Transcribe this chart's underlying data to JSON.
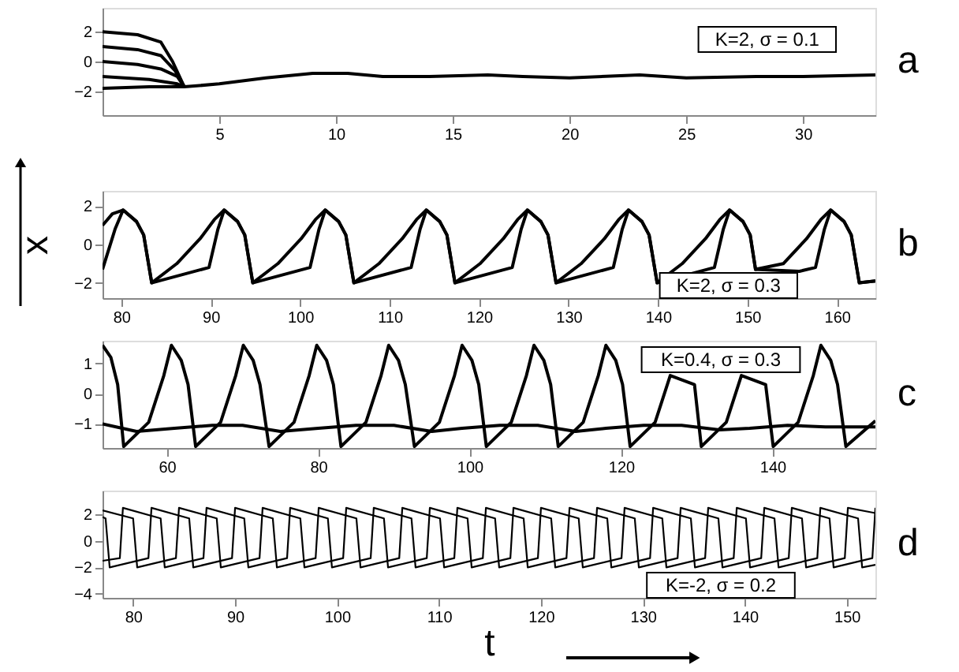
{
  "chart_data": [
    {
      "type": "line",
      "xlim": [
        0,
        33.1
      ],
      "xticks": [
        5,
        10,
        15,
        20,
        25,
        30
      ],
      "ylim": [
        -3.6,
        3.6
      ],
      "yticks": [
        -2,
        0,
        2
      ],
      "legend": false,
      "annotations": [
        "K=2, σ = 0.1",
        "a"
      ],
      "series": [
        {
          "color": "#000000",
          "x": [
            0,
            1.5,
            2.5,
            3.0,
            3.5,
            5,
            7,
            9,
            10.5,
            12,
            14,
            16.5,
            18,
            20,
            23,
            25,
            28,
            30,
            33.1
          ],
          "values": [
            2.0,
            1.8,
            1.3,
            0.0,
            -1.7,
            -1.5,
            -1.1,
            -0.8,
            -0.8,
            -1.0,
            -1.0,
            -0.9,
            -1.0,
            -1.1,
            -0.9,
            -1.1,
            -1.0,
            -1.0,
            -0.9
          ]
        },
        {
          "color": "#000000",
          "x": [
            0,
            1.5,
            2.5,
            3.1,
            3.5
          ],
          "values": [
            1.0,
            0.8,
            0.4,
            -0.6,
            -1.7
          ]
        },
        {
          "color": "#000000",
          "x": [
            0,
            1.5,
            2.5,
            3.2,
            3.5
          ],
          "values": [
            0.0,
            -0.2,
            -0.5,
            -1.0,
            -1.7
          ]
        },
        {
          "color": "#000000",
          "x": [
            0,
            2.0,
            3.2,
            3.5
          ],
          "values": [
            -1.0,
            -1.2,
            -1.5,
            -1.7
          ]
        },
        {
          "color": "#000000",
          "x": [
            0,
            2.0,
            3.2,
            3.5
          ],
          "values": [
            -1.8,
            -1.7,
            -1.7,
            -1.7
          ]
        }
      ]
    },
    {
      "type": "line",
      "xlim": [
        77.9,
        164.3
      ],
      "xticks": [
        80,
        90,
        100,
        110,
        120,
        130,
        140,
        150,
        160
      ],
      "ylim": [
        -2.8,
        2.8
      ],
      "yticks": [
        -2,
        0,
        2
      ],
      "legend": false,
      "ylabel": "x",
      "annotations": [
        "K=2, σ = 0.3",
        "b"
      ],
      "series": [
        {
          "color": "#000000",
          "x": [
            77.9,
            79.3,
            80.2,
            81.7,
            82.5,
            83.4,
            89.8,
            90.8,
            91.5,
            93.0,
            93.8,
            94.7,
            101.1,
            102.1,
            102.8,
            104.3,
            105.1,
            106.0,
            112.4,
            113.4,
            114.1,
            115.6,
            116.4,
            117.3,
            123.7,
            124.7,
            125.4,
            126.9,
            127.7,
            128.6,
            135.0,
            136.0,
            136.7,
            138.2,
            139.0,
            139.9,
            146.3,
            147.3,
            148.0,
            149.5,
            150.3,
            150.9,
            151.2,
            155.8,
            157.6,
            158.6,
            159.3,
            160.8,
            161.6,
            162.5,
            164.3
          ],
          "values": [
            -1.3,
            0.8,
            1.8,
            1.2,
            0.5,
            -2.0,
            -1.2,
            0.8,
            1.8,
            1.2,
            0.5,
            -2.0,
            -1.2,
            0.8,
            1.8,
            1.2,
            0.5,
            -2.0,
            -1.2,
            0.8,
            1.8,
            1.2,
            0.5,
            -2.0,
            -1.2,
            0.8,
            1.8,
            1.2,
            0.5,
            -2.0,
            -1.2,
            0.8,
            1.8,
            1.2,
            0.5,
            -2.0,
            -1.2,
            0.8,
            1.8,
            1.2,
            0.5,
            -1.3,
            null,
            -1.4,
            -1.2,
            0.8,
            1.8,
            1.2,
            0.5,
            -2.0,
            -1.9
          ]
        },
        {
          "color": "#000000",
          "x": [
            77.9,
            79.0,
            80.2,
            81.7,
            82.5,
            83.4,
            86.2,
            88.8,
            90.4,
            91.5,
            93.0,
            93.8,
            94.7,
            97.5,
            100.1,
            101.7,
            102.8,
            104.3,
            105.1,
            106.0,
            108.8,
            111.4,
            113.0,
            114.1,
            115.6,
            116.4,
            117.3,
            120.1,
            122.7,
            124.3,
            125.4,
            126.9,
            127.7,
            128.6,
            131.4,
            134.0,
            135.6,
            136.7,
            138.2,
            139.0,
            139.9,
            142.7,
            145.3,
            146.9,
            148.0,
            149.5,
            150.3,
            150.9,
            151.2,
            154.0,
            156.6,
            158.2,
            159.3,
            160.8,
            161.6,
            162.5,
            164.3
          ],
          "values": [
            1.0,
            1.6,
            1.8,
            1.2,
            0.5,
            -2.0,
            -1.0,
            0.3,
            1.3,
            1.8,
            1.2,
            0.5,
            -2.0,
            -1.0,
            0.3,
            1.3,
            1.8,
            1.2,
            0.5,
            -2.0,
            -1.0,
            0.3,
            1.3,
            1.8,
            1.2,
            0.5,
            -2.0,
            -1.0,
            0.3,
            1.3,
            1.8,
            1.2,
            0.5,
            -2.0,
            -1.0,
            0.3,
            1.3,
            1.8,
            1.2,
            0.5,
            -2.0,
            -1.0,
            0.3,
            1.3,
            1.8,
            1.2,
            0.5,
            -1.3,
            null,
            -1.0,
            0.3,
            1.3,
            1.8,
            1.2,
            0.5,
            -2.0,
            -1.9
          ]
        }
      ]
    },
    {
      "type": "line",
      "xlim": [
        51.5,
        153.6
      ],
      "xticks": [
        60,
        80,
        100,
        120,
        140
      ],
      "ylim": [
        -1.8,
        1.75
      ],
      "yticks": [
        -1,
        0,
        1
      ],
      "legend": false,
      "annotations": [
        "K=0.4, σ = 0.3",
        "c"
      ],
      "series": [
        {
          "color": "#000000",
          "x": [
            51.5,
            52.6,
            53.5,
            54.3,
            57.6,
            59.6,
            60.6,
            61.9,
            62.8,
            63.8,
            67.1,
            69.1,
            70.1,
            71.4,
            72.3,
            73.5,
            76.8,
            78.8,
            79.8,
            81.1,
            82.0,
            83.0,
            86.3,
            88.3,
            89.3,
            90.6,
            91.5,
            92.7,
            96.0,
            98.0,
            99.0,
            100.3,
            101.2,
            102.2,
            105.5,
            107.5,
            108.5,
            109.8,
            110.7,
            111.7,
            115.0,
            117.0,
            118.0,
            119.3,
            120.2,
            121.2,
            124.5,
            126.5,
            127.5,
            128.8,
            129.7,
            130.6,
            133.9,
            135.9,
            136.9,
            138.2,
            139.1,
            140.1,
            143.4,
            145.4,
            146.4,
            147.7,
            148.6,
            149.7,
            153.6
          ],
          "values": [
            1.6,
            1.2,
            0.3,
            -1.75,
            -0.95,
            0.6,
            1.6,
            1.1,
            0.3,
            -1.75,
            -0.95,
            0.6,
            1.6,
            1.1,
            0.3,
            -1.75,
            -0.95,
            0.6,
            1.6,
            1.1,
            0.3,
            -1.75,
            -0.95,
            0.6,
            1.6,
            1.1,
            0.3,
            -1.75,
            -0.95,
            0.6,
            1.6,
            1.1,
            0.3,
            -1.75,
            -0.95,
            0.6,
            1.6,
            1.1,
            0.3,
            -1.75,
            -0.95,
            0.6,
            1.6,
            1.1,
            0.3,
            -1.75,
            -0.95,
            0.6,
            null,
            null,
            0.3,
            -1.75,
            -0.95,
            0.6,
            null,
            null,
            0.3,
            -1.75,
            -0.95,
            0.6,
            1.6,
            1.1,
            0.3,
            -1.75,
            -0.9
          ]
        },
        {
          "color": "#000000",
          "x": [
            51.5,
            56,
            61,
            66,
            70,
            75,
            80,
            85,
            90,
            95,
            99,
            104,
            109,
            114,
            118,
            123,
            128,
            133,
            137,
            142,
            147,
            153.6
          ],
          "values": [
            -1.0,
            -1.25,
            -1.15,
            -1.05,
            -1.05,
            -1.25,
            -1.15,
            -1.05,
            -1.05,
            -1.25,
            -1.15,
            -1.05,
            -1.05,
            -1.25,
            -1.15,
            -1.05,
            -1.05,
            -1.2,
            -1.15,
            -1.05,
            -1.1,
            -1.1
          ]
        }
      ]
    },
    {
      "type": "line",
      "xlim": [
        77,
        152.8
      ],
      "xticks": [
        80,
        90,
        100,
        110,
        120,
        130,
        140,
        150
      ],
      "ylim": [
        -4.3,
        3.8
      ],
      "yticks": [
        -4,
        -2,
        0,
        2
      ],
      "legend": false,
      "xlabel": "t",
      "annotations": [
        "K=-2, σ = 0.2",
        "d"
      ],
      "series": [
        {
          "color": "#000000",
          "x": [
            77,
            77.3,
            77.7,
            81.5,
            81.8,
            85.5,
            85.9,
            89.7,
            90.0,
            93.7,
            94.1,
            97.9,
            98.2,
            101.9,
            102.3,
            106.1,
            106.4,
            110.1,
            110.5,
            114.3,
            114.6,
            118.3,
            118.7,
            122.5,
            122.8,
            126.5,
            126.9,
            130.7,
            131.0,
            134.7,
            135.1,
            138.9,
            139.2,
            142.9,
            143.3,
            147.1,
            147.4,
            151.1,
            151.5,
            152.8
          ],
          "values": [
            1.8,
            1.7,
            -2.0,
            -1.3,
            2.5,
            1.7,
            -2.0,
            -1.3,
            2.5,
            1.7,
            -2.0,
            -1.3,
            2.5,
            1.7,
            -2.0,
            -1.3,
            2.5,
            1.7,
            -2.0,
            -1.3,
            2.5,
            1.7,
            -2.0,
            -1.3,
            2.5,
            1.7,
            -2.0,
            -1.3,
            2.5,
            1.7,
            -2.0,
            -1.3,
            2.5,
            1.7,
            -2.0,
            -1.3,
            2.5,
            1.7,
            -2.0,
            -1.8
          ]
        },
        {
          "color": "#000000",
          "x": [
            77,
            80.0,
            80.4,
            84.2,
            84.5,
            88.2,
            88.6,
            92.4,
            92.7,
            96.4,
            96.8,
            100.6,
            100.9,
            104.6,
            105.0,
            108.8,
            109.1,
            112.8,
            113.2,
            117.0,
            117.3,
            121.0,
            121.4,
            125.2,
            125.5,
            129.2,
            129.6,
            133.4,
            133.7,
            137.4,
            137.8,
            141.6,
            141.9,
            145.6,
            146.0,
            149.8,
            150.1,
            152.8
          ],
          "values": [
            2.3,
            1.7,
            -2.0,
            -1.3,
            2.5,
            1.7,
            -2.0,
            -1.3,
            2.5,
            1.7,
            -2.0,
            -1.3,
            2.5,
            1.7,
            -2.0,
            -1.3,
            2.5,
            1.7,
            -2.0,
            -1.3,
            2.5,
            1.7,
            -2.0,
            -1.3,
            2.5,
            1.7,
            -2.0,
            -1.3,
            2.5,
            1.7,
            -2.0,
            -1.3,
            2.5,
            1.7,
            -2.0,
            -1.3,
            2.5,
            2.1
          ]
        },
        {
          "color": "#000000",
          "x": [
            77,
            78.7,
            79.0,
            82.7,
            83.1,
            86.9,
            87.2,
            90.9,
            91.3,
            95.1,
            95.4,
            99.1,
            99.5,
            103.3,
            103.6,
            107.3,
            107.7,
            111.5,
            111.8,
            115.5,
            115.9,
            119.7,
            120.0,
            123.7,
            124.1,
            127.9,
            128.2,
            131.9,
            132.3,
            136.1,
            136.4,
            140.1,
            140.5,
            144.3,
            144.6,
            148.3,
            148.7,
            152.5,
            152.8
          ],
          "values": [
            -1.5,
            -1.3,
            2.5,
            1.7,
            -2.0,
            -1.3,
            2.5,
            1.7,
            -2.0,
            -1.3,
            2.5,
            1.7,
            -2.0,
            -1.3,
            2.5,
            1.7,
            -2.0,
            -1.3,
            2.5,
            1.7,
            -2.0,
            -1.3,
            2.5,
            1.7,
            -2.0,
            -1.3,
            2.5,
            1.7,
            -2.0,
            -1.3,
            2.5,
            1.7,
            -2.0,
            -1.3,
            2.5,
            1.7,
            -2.0,
            -1.3,
            2.5
          ]
        }
      ]
    }
  ]
}
